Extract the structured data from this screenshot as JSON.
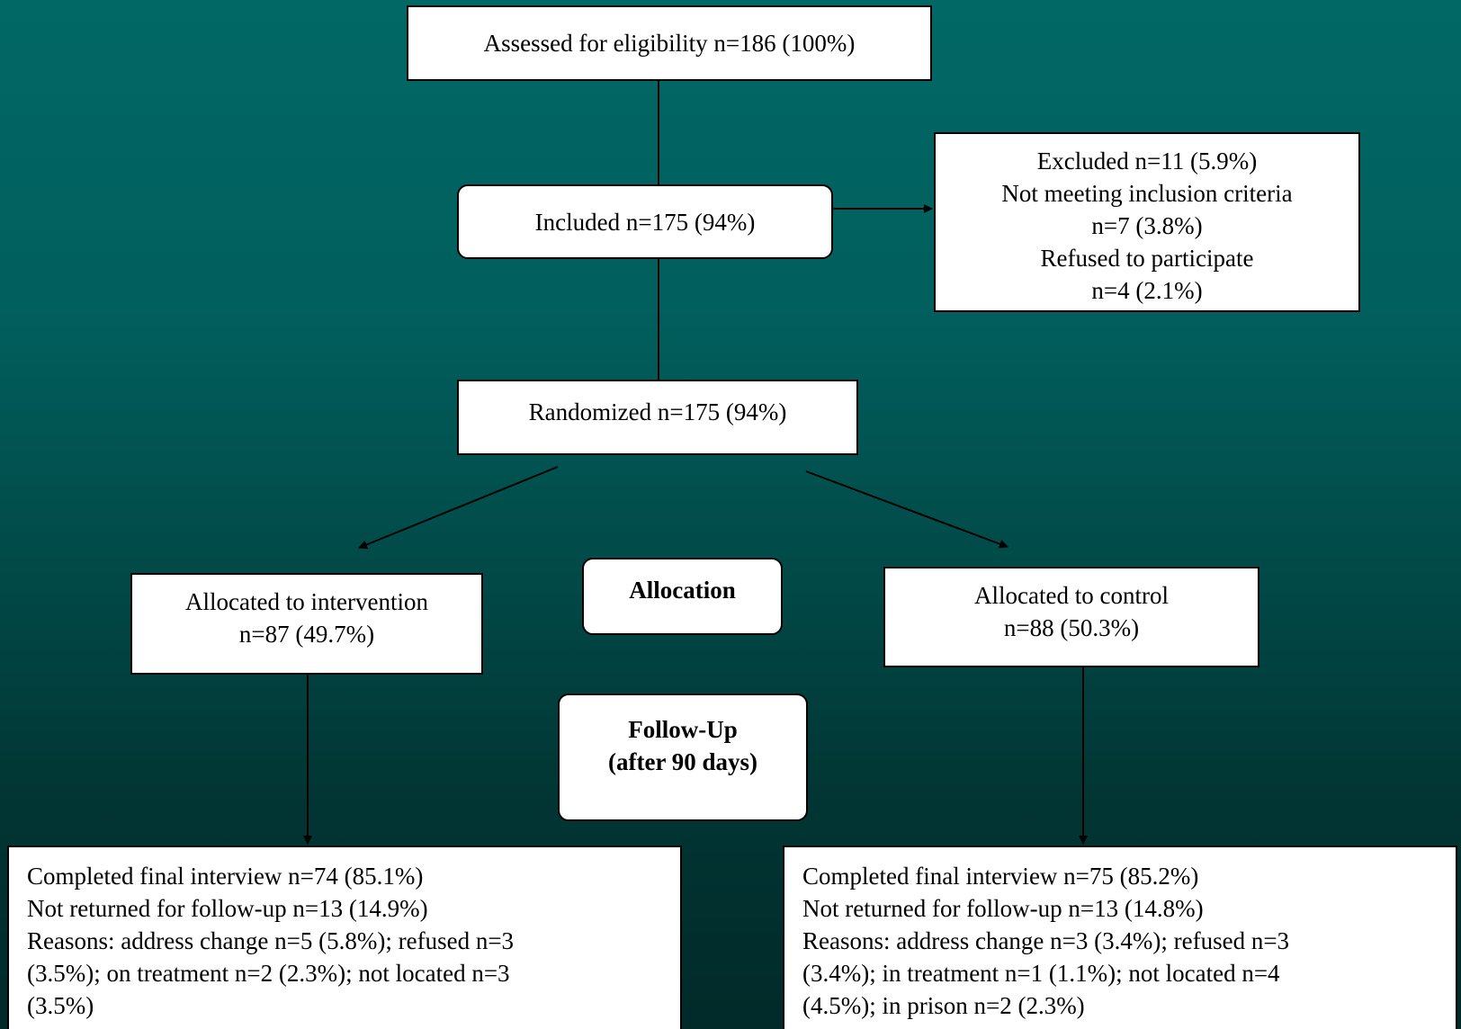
{
  "flowchart": {
    "assessed": "Assessed for eligibility n=186 (100%)",
    "included": "Included n=175 (94%)",
    "excluded": {
      "lines": [
        "Excluded n=11 (5.9%)",
        "Not meeting inclusion criteria",
        "n=7 (3.8%)",
        "Refused to participate",
        "n=4 (2.1%)"
      ]
    },
    "randomized": "Randomized n=175 (94%)",
    "allocation_label": "Allocation",
    "intervention": {
      "lines": [
        "Allocated to intervention",
        "n=87 (49.7%)"
      ]
    },
    "control": {
      "lines": [
        "Allocated to control",
        "n=88 (50.3%)"
      ]
    },
    "followup_label": {
      "lines": [
        "Follow-Up",
        "(after 90 days)"
      ]
    },
    "intervention_outcome": {
      "lines": [
        "Completed final interview n=74 (85.1%)",
        "Not returned for follow-up n=13 (14.9%)",
        "Reasons: address change n=5 (5.8%); refused n=3",
        "(3.5%); on treatment n=2 (2.3%); not located n=3",
        "(3.5%)"
      ]
    },
    "control_outcome": {
      "lines": [
        "Completed final interview n=75 (85.2%)",
        "Not returned for follow-up n=13 (14.8%)",
        "Reasons: address change n=3 (3.4%); refused n=3",
        "(3.4%); in treatment n=1 (1.1%); not located n=4",
        "(4.5%); in prison n=2 (2.3%)"
      ]
    }
  }
}
